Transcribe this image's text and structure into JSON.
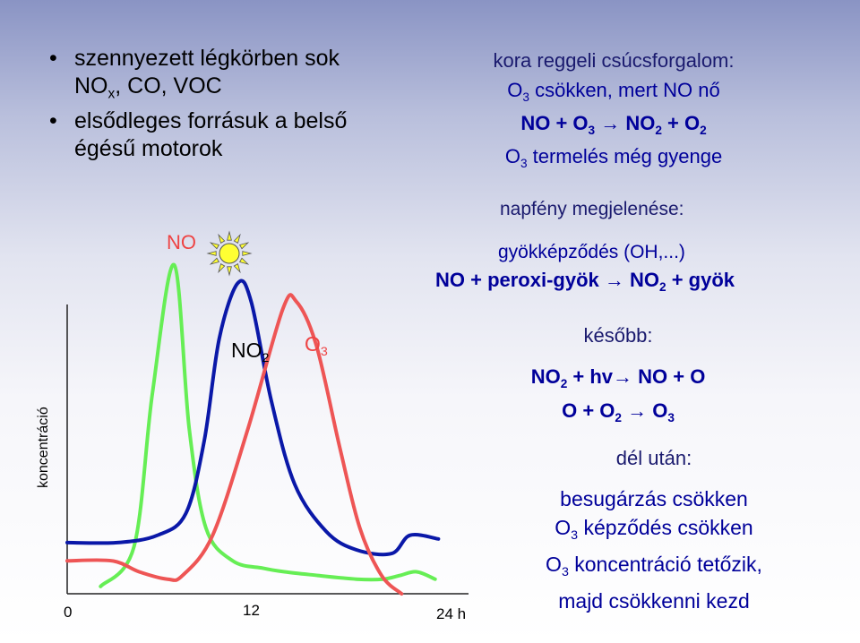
{
  "bullets": [
    {
      "line1": "szennyezett légkörben sok",
      "line2_pre": "NO",
      "line2_sub": "x",
      "line2_post": ", CO, VOC"
    },
    {
      "line1": "elsődleges forrásuk a belső",
      "line2": "égésű motorok"
    }
  ],
  "morning": {
    "heading": "kora reggeli csúcsforgalom:",
    "line1": {
      "a": "O",
      "a_sub": "3",
      "b": " csökken, mert NO nő"
    },
    "line2": {
      "a": "NO + O",
      "a_sub": "3",
      "arrow": " → ",
      "b": "NO",
      "b_sub": "2",
      "c": " + O",
      "c_sub": "2"
    },
    "line3": {
      "a": "O",
      "a_sub": "3",
      "b": " termelés még gyenge"
    }
  },
  "sunlight": {
    "heading": "napfény megjelenése:",
    "line1": "gyökképződés (OH,...)",
    "line2": {
      "a": "NO + peroxi-gyök ",
      "arrow": "→",
      "b": " NO",
      "b_sub": "2",
      "c": " + gyök"
    }
  },
  "later": {
    "heading": "később:",
    "line1": {
      "a": "NO",
      "a_sub": "2",
      "b": " + hv",
      "arrow": "→",
      "c": " NO + O"
    },
    "line2": {
      "a": "O + O",
      "a_sub": "2",
      "arrow": " → ",
      "b": "O",
      "b_sub": "3"
    }
  },
  "afternoon": {
    "heading": "dél után:",
    "line1": "besugárzás csökken",
    "line2": {
      "a": "O",
      "a_sub": "3",
      "b": " képződés csökken"
    },
    "line3": {
      "a": "O",
      "a_sub": "3",
      "b": " koncentráció tetőzik,"
    },
    "line4": "majd csökkenni kezd"
  },
  "chart_data": {
    "type": "line",
    "ylabel": "koncentráció",
    "x_ticks": [
      {
        "value": 0,
        "label": "0"
      },
      {
        "value": 12,
        "label": "12"
      },
      {
        "value": 24,
        "label": "24 h"
      }
    ],
    "xlim": [
      0,
      24
    ],
    "series": [
      {
        "name": "NO",
        "color": "#66ee55",
        "x": [
          2.0,
          4.0,
          5.1,
          6.4,
          7.3,
          8.3,
          9.9,
          11.7,
          13.0,
          15.0,
          17.3,
          18.9,
          19.9,
          20.9,
          22.0
        ],
        "y": [
          0.02,
          0.13,
          0.55,
          0.9,
          0.45,
          0.18,
          0.09,
          0.07,
          0.06,
          0.05,
          0.04,
          0.04,
          0.05,
          0.06,
          0.04
        ]
      },
      {
        "name": "NO2",
        "name_display": {
          "a": "NO",
          "a_sub": "2"
        },
        "color": "#0a18a8",
        "x": [
          0.0,
          3.0,
          5.4,
          7.1,
          8.2,
          9.1,
          10.2,
          11.0,
          12.2,
          13.6,
          15.5,
          17.3,
          19.4,
          20.5,
          22.2
        ],
        "y": [
          0.14,
          0.14,
          0.16,
          0.22,
          0.42,
          0.7,
          0.85,
          0.8,
          0.53,
          0.3,
          0.17,
          0.12,
          0.11,
          0.16,
          0.15
        ]
      },
      {
        "name": "O3",
        "name_display": {
          "a": "O",
          "a_sub": "3"
        },
        "color": "#ee5555",
        "x": [
          0.0,
          2.7,
          4.3,
          6.0,
          6.9,
          8.7,
          10.8,
          12.9,
          13.7,
          14.9,
          16.3,
          17.5,
          18.8,
          20.0
        ],
        "y": [
          0.09,
          0.09,
          0.06,
          0.04,
          0.05,
          0.16,
          0.45,
          0.78,
          0.8,
          0.68,
          0.4,
          0.18,
          0.05,
          0.0
        ]
      }
    ]
  },
  "sun": {
    "icon": "sun-icon",
    "color": "#ffff33"
  }
}
